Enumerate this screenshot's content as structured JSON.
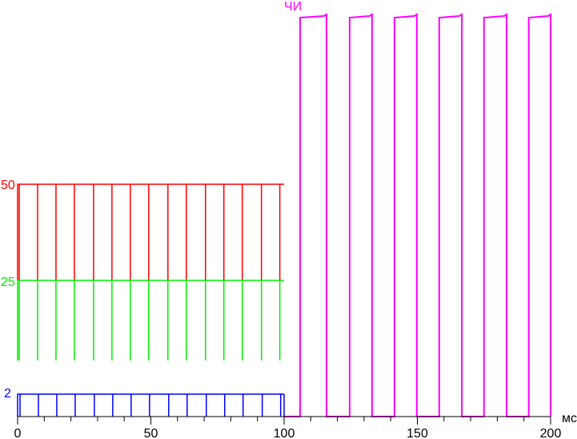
{
  "chart_data": {
    "type": "line",
    "x_unit": "мс",
    "xlim": [
      0,
      200
    ],
    "x_ticks": [
      0,
      50,
      100,
      150,
      200
    ],
    "x_minor_step": 10,
    "grid": false,
    "series": [
      {
        "name": "50",
        "color": "#ff0000",
        "x_range": [
          0,
          100
        ],
        "pulse_times_ms": [
          0.6,
          7.5,
          14.4,
          21.3,
          28.5,
          35.4,
          42.3,
          49.2,
          56.4,
          63.3,
          70.5,
          77.4,
          84.3,
          91.5,
          98.4
        ],
        "level_range_pct": [
          0,
          100
        ]
      },
      {
        "name": "25",
        "color": "#00ee00",
        "x_range": [
          0,
          100
        ],
        "pulse_times_ms": [
          0.6,
          7.5,
          14.4,
          21.3,
          28.5,
          35.4,
          42.3,
          49.2,
          56.4,
          63.3,
          70.5,
          77.4,
          84.3,
          91.5,
          98.4
        ],
        "level_range_pct": [
          0,
          100
        ]
      },
      {
        "name": "2",
        "color": "#0000ff",
        "x_range": [
          0,
          100
        ],
        "pulse_times_ms": [
          0.6,
          7.5,
          14.4,
          21.3,
          28.5,
          35.4,
          42.3,
          49.2,
          56.4,
          63.3,
          70.5,
          77.4,
          84.3,
          91.5,
          98.4
        ],
        "level_range_pct": [
          0,
          100
        ]
      },
      {
        "name": "ЧИ",
        "color": "#ff00ff",
        "x_range": [
          100,
          200
        ],
        "rise_times_ms": [
          106.0,
          124.6,
          141.4,
          158.2,
          175.0,
          191.8
        ],
        "fall_times_ms": [
          115.9,
          133.0,
          149.8,
          166.7,
          183.5,
          200.0
        ],
        "level_range_pct": [
          0,
          100
        ]
      }
    ]
  }
}
